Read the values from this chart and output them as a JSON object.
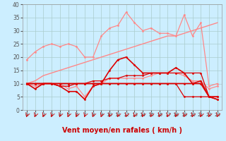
{
  "xlabel": "Vent moyen/en rafales ( km/h )",
  "background_color": "#cceeff",
  "grid_color": "#aacccc",
  "x": [
    0,
    1,
    2,
    3,
    4,
    5,
    6,
    7,
    8,
    9,
    10,
    11,
    12,
    13,
    14,
    15,
    16,
    17,
    18,
    19,
    20,
    21,
    22,
    23
  ],
  "ylim": [
    0,
    40
  ],
  "xlim": [
    -0.5,
    23.5
  ],
  "series": [
    {
      "name": "rafales_max",
      "color": "#ff8888",
      "lw": 0.9,
      "marker": "o",
      "ms": 2.0,
      "y": [
        19,
        22,
        24,
        25,
        24,
        25,
        24,
        20,
        20,
        28,
        31,
        32,
        37,
        33,
        30,
        31,
        29,
        29,
        28,
        36,
        28,
        33,
        9,
        10
      ]
    },
    {
      "name": "rafales_trend",
      "color": "#ff8888",
      "lw": 1.0,
      "marker": null,
      "ms": 0,
      "y": [
        10,
        11,
        13,
        14,
        15,
        16,
        17,
        18,
        19,
        20,
        21,
        22,
        23,
        24,
        25,
        26,
        27,
        28,
        28,
        29,
        30,
        31,
        32,
        33
      ]
    },
    {
      "name": "vent_moyen_zigzag",
      "color": "#ff8888",
      "lw": 0.9,
      "marker": "o",
      "ms": 2.0,
      "y": [
        10,
        9,
        10,
        10,
        10,
        8,
        9,
        5,
        9,
        10,
        12,
        12,
        12,
        12,
        12,
        13,
        14,
        14,
        14,
        13,
        11,
        11,
        8,
        9
      ]
    },
    {
      "name": "dark_line1",
      "color": "#dd0000",
      "lw": 1.2,
      "marker": "o",
      "ms": 2.0,
      "y": [
        10,
        8,
        10,
        10,
        9,
        7,
        7,
        4,
        9,
        10,
        15,
        19,
        20,
        17,
        14,
        14,
        14,
        14,
        16,
        14,
        10,
        11,
        5,
        4
      ]
    },
    {
      "name": "dark_flat1",
      "color": "#dd0000",
      "lw": 1.2,
      "marker": "o",
      "ms": 2.0,
      "y": [
        10,
        10,
        10,
        10,
        10,
        10,
        10,
        10,
        10,
        10,
        10,
        10,
        10,
        10,
        10,
        10,
        10,
        10,
        10,
        10,
        10,
        10,
        5,
        5
      ]
    },
    {
      "name": "dark_rising",
      "color": "#dd0000",
      "lw": 0.9,
      "marker": "o",
      "ms": 2.0,
      "y": [
        10,
        10,
        10,
        10,
        10,
        10,
        10,
        10,
        11,
        11,
        12,
        12,
        13,
        13,
        13,
        14,
        14,
        14,
        14,
        14,
        14,
        14,
        5,
        4
      ]
    },
    {
      "name": "dark_flat2",
      "color": "#dd0000",
      "lw": 0.9,
      "marker": "o",
      "ms": 2.0,
      "y": [
        10,
        10,
        10,
        10,
        9,
        9,
        10,
        10,
        10,
        10,
        10,
        10,
        10,
        10,
        10,
        10,
        10,
        10,
        10,
        5,
        5,
        5,
        5,
        5
      ]
    }
  ],
  "yticks": [
    0,
    5,
    10,
    15,
    20,
    25,
    30,
    35,
    40
  ],
  "xlabel_color": "#cc0000",
  "xlabel_fontsize": 7,
  "xtick_fontsize": 5,
  "ytick_fontsize": 5.5
}
